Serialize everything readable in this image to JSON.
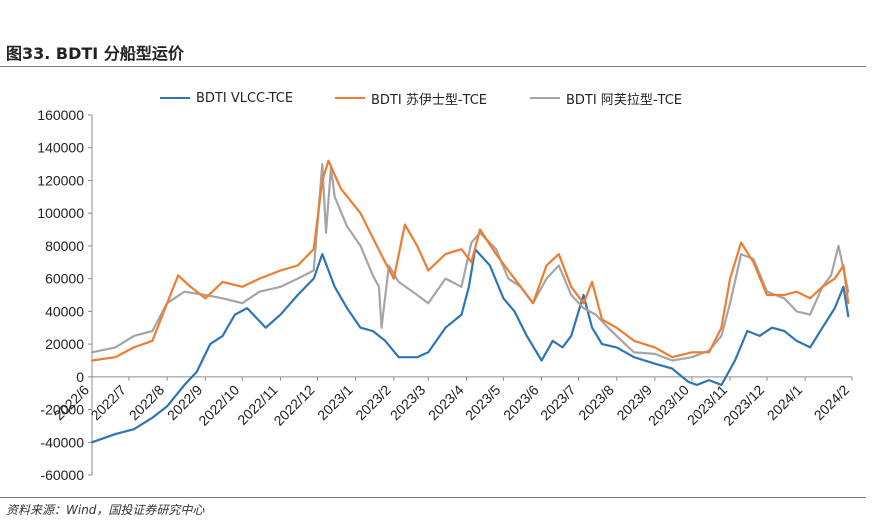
{
  "figure_title": "图33. BDTI 分船型运价",
  "source_note": "资料来源：Wind，国投证券研究中心",
  "chart_data": {
    "type": "line",
    "title": "",
    "xlabel": "",
    "ylabel": "",
    "ylim": [
      -60000,
      160000
    ],
    "yticks": [
      -60000,
      -40000,
      -20000,
      0,
      20000,
      40000,
      60000,
      80000,
      100000,
      120000,
      140000,
      160000
    ],
    "ytick_labels": [
      "-60000",
      "-40000",
      "-20000",
      "0",
      "20000",
      "40000",
      "60000",
      "80000",
      "100000",
      "120000",
      "140000",
      "160000"
    ],
    "x_range": [
      "2022-06",
      "2024-02"
    ],
    "x_tick_labels": [
      "2022/6",
      "2022/7",
      "2022/8",
      "2022/9",
      "2022/10",
      "2022/11",
      "2022/12",
      "2023/1",
      "2023/2",
      "2023/3",
      "2023/4",
      "2023/5",
      "2023/6",
      "2023/7",
      "2023/8",
      "2023/9",
      "2023/10",
      "2023/11",
      "2023/12",
      "2024/1",
      "2024/2"
    ],
    "grid": false,
    "legend_position": "top",
    "series": [
      {
        "name": "BDTI VLCC-TCE",
        "color": "#2E75B6",
        "x": [
          "2022-06-01",
          "2022-06-20",
          "2022-07-05",
          "2022-07-20",
          "2022-08-01",
          "2022-08-15",
          "2022-08-25",
          "2022-09-05",
          "2022-09-15",
          "2022-09-25",
          "2022-10-05",
          "2022-10-20",
          "2022-11-01",
          "2022-11-15",
          "2022-11-28",
          "2022-12-05",
          "2022-12-15",
          "2022-12-25",
          "2023-01-05",
          "2023-01-15",
          "2023-01-25",
          "2023-02-05",
          "2023-02-20",
          "2023-03-01",
          "2023-03-15",
          "2023-03-28",
          "2023-04-03",
          "2023-04-08",
          "2023-04-20",
          "2023-05-01",
          "2023-05-10",
          "2023-05-20",
          "2023-06-01",
          "2023-06-10",
          "2023-06-18",
          "2023-06-25",
          "2023-07-05",
          "2023-07-12",
          "2023-07-20",
          "2023-08-01",
          "2023-08-15",
          "2023-09-01",
          "2023-09-15",
          "2023-09-28",
          "2023-10-05",
          "2023-10-15",
          "2023-10-25",
          "2023-11-05",
          "2023-11-15",
          "2023-11-25",
          "2023-12-05",
          "2023-12-15",
          "2023-12-25",
          "2024-01-05",
          "2024-01-15",
          "2024-01-25",
          "2024-02-01",
          "2024-02-05"
        ],
        "values": [
          -40000,
          -35000,
          -32000,
          -25000,
          -18000,
          -5000,
          3000,
          20000,
          25000,
          38000,
          42000,
          30000,
          38000,
          50000,
          60000,
          75000,
          55000,
          42000,
          30000,
          28000,
          22000,
          12000,
          12000,
          15000,
          30000,
          38000,
          55000,
          78000,
          68000,
          48000,
          40000,
          25000,
          10000,
          22000,
          18000,
          25000,
          50000,
          30000,
          20000,
          18000,
          12000,
          8000,
          5000,
          -3000,
          -5000,
          -2000,
          -5000,
          10000,
          28000,
          25000,
          30000,
          28000,
          22000,
          18000,
          30000,
          42000,
          55000,
          37000
        ]
      },
      {
        "name": "BDTI 苏伊士型-TCE",
        "color": "#ED7D31",
        "x": [
          "2022-06-01",
          "2022-06-20",
          "2022-07-05",
          "2022-07-20",
          "2022-08-01",
          "2022-08-10",
          "2022-08-20",
          "2022-09-01",
          "2022-09-15",
          "2022-10-01",
          "2022-10-15",
          "2022-11-01",
          "2022-11-15",
          "2022-11-28",
          "2022-12-05",
          "2022-12-10",
          "2022-12-20",
          "2023-01-05",
          "2023-01-15",
          "2023-01-25",
          "2023-02-01",
          "2023-02-10",
          "2023-02-20",
          "2023-03-01",
          "2023-03-15",
          "2023-03-28",
          "2023-04-05",
          "2023-04-12",
          "2023-04-25",
          "2023-05-05",
          "2023-05-15",
          "2023-05-25",
          "2023-06-05",
          "2023-06-15",
          "2023-06-25",
          "2023-07-05",
          "2023-07-12",
          "2023-07-20",
          "2023-08-01",
          "2023-08-15",
          "2023-09-01",
          "2023-09-15",
          "2023-10-01",
          "2023-10-15",
          "2023-10-25",
          "2023-11-01",
          "2023-11-10",
          "2023-11-20",
          "2023-12-01",
          "2023-12-15",
          "2023-12-25",
          "2024-01-05",
          "2024-01-15",
          "2024-01-25",
          "2024-02-01",
          "2024-02-05"
        ],
        "values": [
          10000,
          12000,
          18000,
          22000,
          45000,
          62000,
          55000,
          48000,
          58000,
          55000,
          60000,
          65000,
          68000,
          78000,
          120000,
          132000,
          115000,
          100000,
          85000,
          70000,
          60000,
          93000,
          80000,
          65000,
          75000,
          78000,
          70000,
          90000,
          75000,
          65000,
          55000,
          45000,
          68000,
          75000,
          55000,
          45000,
          58000,
          35000,
          30000,
          22000,
          18000,
          12000,
          15000,
          15000,
          30000,
          60000,
          82000,
          70000,
          50000,
          50000,
          52000,
          48000,
          55000,
          60000,
          68000,
          45000
        ]
      },
      {
        "name": "BDTI 阿芙拉型-TCE",
        "color": "#A5A5A5",
        "x": [
          "2022-06-01",
          "2022-06-20",
          "2022-07-05",
          "2022-07-20",
          "2022-08-01",
          "2022-08-15",
          "2022-09-01",
          "2022-09-15",
          "2022-10-01",
          "2022-10-15",
          "2022-11-01",
          "2022-11-15",
          "2022-11-28",
          "2022-12-05",
          "2022-12-08",
          "2022-12-12",
          "2022-12-15",
          "2022-12-25",
          "2023-01-05",
          "2023-01-15",
          "2023-01-20",
          "2023-01-22",
          "2023-01-28",
          "2023-02-05",
          "2023-02-20",
          "2023-03-01",
          "2023-03-15",
          "2023-03-28",
          "2023-04-05",
          "2023-04-12",
          "2023-04-25",
          "2023-05-05",
          "2023-05-15",
          "2023-05-25",
          "2023-06-05",
          "2023-06-15",
          "2023-06-25",
          "2023-07-05",
          "2023-07-15",
          "2023-07-25",
          "2023-08-05",
          "2023-08-15",
          "2023-09-01",
          "2023-09-15",
          "2023-10-01",
          "2023-10-15",
          "2023-10-25",
          "2023-11-01",
          "2023-11-10",
          "2023-11-20",
          "2023-12-01",
          "2023-12-15",
          "2023-12-25",
          "2024-01-05",
          "2024-01-15",
          "2024-01-22",
          "2024-01-28",
          "2024-02-05"
        ],
        "values": [
          15000,
          18000,
          25000,
          28000,
          45000,
          52000,
          50000,
          48000,
          45000,
          52000,
          55000,
          60000,
          65000,
          130000,
          88000,
          128000,
          110000,
          92000,
          80000,
          62000,
          55000,
          30000,
          68000,
          58000,
          50000,
          45000,
          60000,
          55000,
          82000,
          88000,
          78000,
          60000,
          55000,
          45000,
          60000,
          68000,
          50000,
          42000,
          38000,
          30000,
          22000,
          15000,
          14000,
          10000,
          12000,
          16000,
          25000,
          45000,
          75000,
          72000,
          52000,
          48000,
          40000,
          38000,
          55000,
          62000,
          80000,
          52000
        ]
      }
    ]
  }
}
